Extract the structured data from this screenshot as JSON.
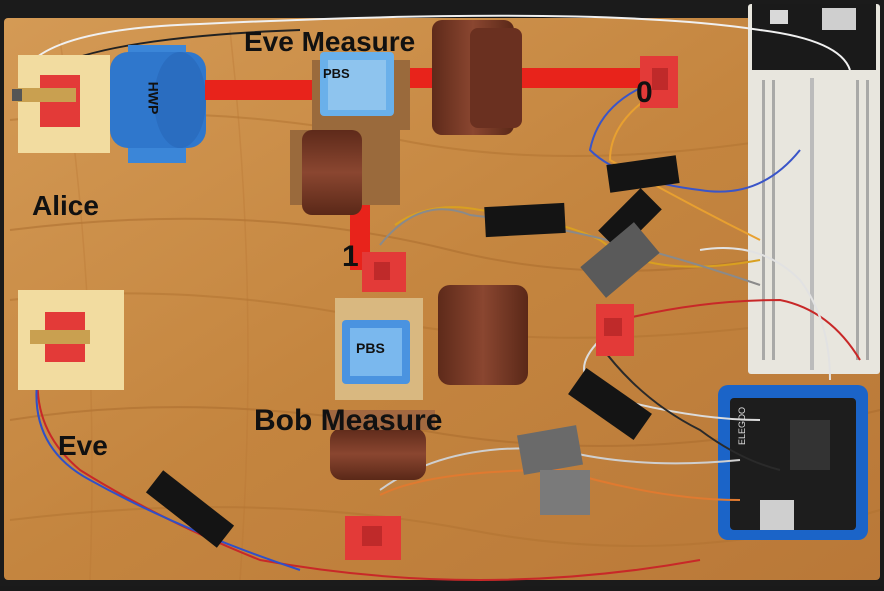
{
  "labels": {
    "eve_measure": "Eve Measure",
    "pbs_top": "PBS",
    "hwp": "HWP",
    "zero": "0",
    "alice": "Alice",
    "one": "1",
    "pbs_bottom": "PBS",
    "bob_measure": "Bob Measure",
    "eve": "Eve"
  },
  "colors": {
    "board": "#c98a45",
    "beam": "#e8231b",
    "mount_blue": "#3b86d8",
    "pbs_blue": "#6ab0ea",
    "detector_red": "#e33a38",
    "cylinder_brown": "#7a3a25",
    "arduino_blue": "#1b64c8"
  }
}
